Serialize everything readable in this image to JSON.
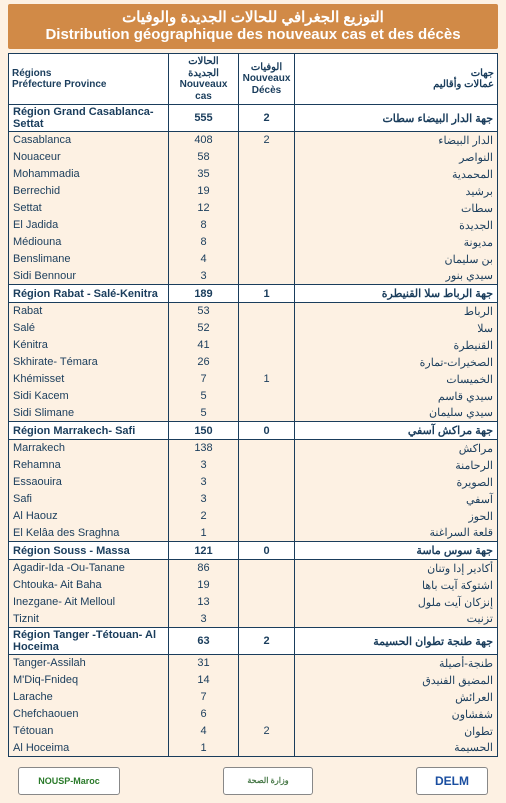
{
  "title_ar": "التوزيع الجغرافي للحالات الجديدة والوفيات",
  "title_fr": "Distribution géographique des nouveaux cas et des décès",
  "headers": {
    "fr_line1": "Régions",
    "fr_line2": "Préfecture Province",
    "cases_ar": "الحالات الجديدة",
    "cases_fr1": "Nouveaux",
    "cases_fr2": "cas",
    "deaths_ar": "الوفيات",
    "deaths_fr1": "Nouveaux",
    "deaths_fr2": "Décès",
    "ar_line1": "جهات",
    "ar_line2": "عمالات وأقاليم"
  },
  "regions": [
    {
      "name_fr": "Région Grand Casablanca-Settat",
      "name_ar": "جهة الدار البيضاء سطات",
      "cases": "555",
      "deaths": "2",
      "rows": [
        {
          "fr": "Casablanca",
          "cases": "408",
          "deaths": "2",
          "ar": "الدار البيضاء"
        },
        {
          "fr": "Nouaceur",
          "cases": "58",
          "deaths": "",
          "ar": "النواصر"
        },
        {
          "fr": "Mohammadia",
          "cases": "35",
          "deaths": "",
          "ar": "المحمدية"
        },
        {
          "fr": "Berrechid",
          "cases": "19",
          "deaths": "",
          "ar": "برشيد"
        },
        {
          "fr": "Settat",
          "cases": "12",
          "deaths": "",
          "ar": "سطات"
        },
        {
          "fr": "El Jadida",
          "cases": "8",
          "deaths": "",
          "ar": "الجديدة"
        },
        {
          "fr": "Médiouna",
          "cases": "8",
          "deaths": "",
          "ar": "مديونة"
        },
        {
          "fr": "Benslimane",
          "cases": "4",
          "deaths": "",
          "ar": "بن سليمان"
        },
        {
          "fr": "Sidi Bennour",
          "cases": "3",
          "deaths": "",
          "ar": "سيدي بنور"
        }
      ]
    },
    {
      "name_fr": "Région Rabat - Salé-Kenitra",
      "name_ar": "جهة الرباط سلا القنيطرة",
      "cases": "189",
      "deaths": "1",
      "rows": [
        {
          "fr": "Rabat",
          "cases": "53",
          "deaths": "",
          "ar": "الرباط"
        },
        {
          "fr": "Salé",
          "cases": "52",
          "deaths": "",
          "ar": "سلا"
        },
        {
          "fr": "Kénitra",
          "cases": "41",
          "deaths": "",
          "ar": "القنيطرة"
        },
        {
          "fr": "Skhirate- Témara",
          "cases": "26",
          "deaths": "",
          "ar": "الصخيرات-تمارة"
        },
        {
          "fr": "Khémisset",
          "cases": "7",
          "deaths": "1",
          "ar": "الخميسات"
        },
        {
          "fr": "Sidi Kacem",
          "cases": "5",
          "deaths": "",
          "ar": "سيدي قاسم"
        },
        {
          "fr": "Sidi Slimane",
          "cases": "5",
          "deaths": "",
          "ar": "سيدي سليمان"
        }
      ]
    },
    {
      "name_fr": "Région Marrakech- Safi",
      "name_ar": "جهة مراكش آسفي",
      "cases": "150",
      "deaths": "0",
      "rows": [
        {
          "fr": "Marrakech",
          "cases": "138",
          "deaths": "",
          "ar": "مراكش"
        },
        {
          "fr": "Rehamna",
          "cases": "3",
          "deaths": "",
          "ar": "الرحامنة"
        },
        {
          "fr": "Essaouira",
          "cases": "3",
          "deaths": "",
          "ar": "الصويرة"
        },
        {
          "fr": "Safi",
          "cases": "3",
          "deaths": "",
          "ar": "آسفي"
        },
        {
          "fr": "Al  Haouz",
          "cases": "2",
          "deaths": "",
          "ar": "الحوز"
        },
        {
          "fr": "El Kelâa des  Sraghna",
          "cases": "1",
          "deaths": "",
          "ar": "قلعة السراغنة"
        }
      ]
    },
    {
      "name_fr": "Région Souss - Massa",
      "name_ar": "جهة سوس ماسة",
      "cases": "121",
      "deaths": "0",
      "rows": [
        {
          "fr": "Agadir-Ida -Ou-Tanane",
          "cases": "86",
          "deaths": "",
          "ar": "أكادير إدا وتنان"
        },
        {
          "fr": "Chtouka- Ait Baha",
          "cases": "19",
          "deaths": "",
          "ar": "اشتوكة آيت باها"
        },
        {
          "fr": "Inezgane- Ait Melloul",
          "cases": "13",
          "deaths": "",
          "ar": "إنزكان آيت ملول"
        },
        {
          "fr": "Tiznit",
          "cases": "3",
          "deaths": "",
          "ar": "تزنيت"
        }
      ]
    },
    {
      "name_fr": "Région Tanger -Tétouan- Al Hoceima",
      "name_ar": "جهة طنجة تطوان الحسيمة",
      "cases": "63",
      "deaths": "2",
      "rows": [
        {
          "fr": "Tanger-Assilah",
          "cases": "31",
          "deaths": "",
          "ar": "طنجة-أصيلة"
        },
        {
          "fr": "M'Diq-Fnideq",
          "cases": "14",
          "deaths": "",
          "ar": "المضيق الفنيدق"
        },
        {
          "fr": "Larache",
          "cases": "7",
          "deaths": "",
          "ar": "العرائش"
        },
        {
          "fr": "Chefchaouen",
          "cases": "6",
          "deaths": "",
          "ar": "شفشاون"
        },
        {
          "fr": "Tétouan",
          "cases": "4",
          "deaths": "2",
          "ar": "تطوان"
        },
        {
          "fr": "Al Hoceima",
          "cases": "1",
          "deaths": "",
          "ar": "الحسيمة"
        }
      ]
    }
  ],
  "logos": {
    "left": "NOUSP-Maroc",
    "mid_top": "وزارة الصحة",
    "right": "DELM"
  },
  "colors": {
    "band": "#d18a47",
    "page_bg": "#fdf1e3",
    "text": "#1a3d5c"
  }
}
